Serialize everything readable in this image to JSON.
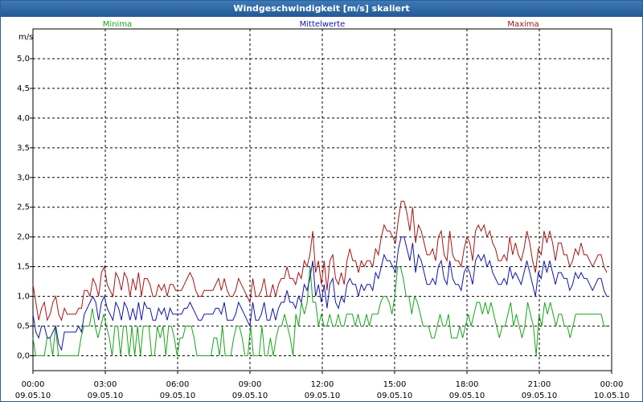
{
  "window": {
    "title": "Windgeschwindigkeit [m/s] skaliert"
  },
  "chart_data": {
    "type": "line",
    "title": "Windgeschwindigkeit [m/s] skaliert",
    "ylabel": "m/s",
    "ylim": [
      -0.25,
      5.5
    ],
    "yticks": [
      "0,0",
      "0,5",
      "1,0",
      "1,5",
      "2,0",
      "2,5",
      "3,0",
      "3,5",
      "4,0",
      "4,5",
      "5,0"
    ],
    "xticks": [
      {
        "time": "00:00",
        "date": "09.05.10"
      },
      {
        "time": "03:00",
        "date": "09.05.10"
      },
      {
        "time": "06:00",
        "date": "09.05.10"
      },
      {
        "time": "09:00",
        "date": "09.05.10"
      },
      {
        "time": "12:00",
        "date": "09.05.10"
      },
      {
        "time": "15:00",
        "date": "09.05.10"
      },
      {
        "time": "18:00",
        "date": "09.05.10"
      },
      {
        "time": "21:00",
        "date": "09.05.10"
      },
      {
        "time": "00:00",
        "date": "10.05.10"
      }
    ],
    "grid": true,
    "legend_placement": "top",
    "series": [
      {
        "name": "Minima",
        "color": "#19a319",
        "values": [
          0.3,
          0.0,
          0.0,
          0.0,
          0.0,
          0.3,
          0.3,
          0.0,
          0.5,
          0.0,
          0.0,
          0.0,
          0.0,
          0.0,
          0.0,
          0.0,
          0.0,
          0.3,
          0.5,
          0.5,
          0.5,
          0.8,
          0.5,
          0.3,
          0.5,
          0.7,
          0.5,
          0.3,
          0.0,
          0.5,
          0.5,
          0.0,
          0.5,
          0.5,
          0.0,
          0.5,
          0.0,
          0.5,
          0.0,
          0.5,
          0.5,
          0.5,
          0.0,
          0.0,
          0.5,
          0.3,
          0.5,
          0.0,
          0.5,
          0.5,
          0.3,
          0.0,
          0.3,
          0.3,
          0.5,
          0.5,
          0.5,
          0.3,
          0.0,
          0.0,
          0.0,
          0.0,
          0.0,
          0.0,
          0.3,
          0.3,
          0.0,
          0.5,
          0.0,
          0.0,
          0.0,
          0.3,
          0.5,
          0.5,
          0.3,
          0.0,
          0.0,
          0.5,
          0.0,
          0.0,
          0.0,
          0.5,
          0.0,
          0.0,
          0.3,
          0.0,
          0.3,
          0.5,
          0.5,
          0.7,
          0.5,
          0.3,
          0.0,
          0.7,
          0.5,
          0.9,
          0.7,
          0.9,
          1.5,
          0.9,
          0.9,
          0.5,
          0.7,
          0.5,
          0.5,
          0.7,
          0.5,
          0.5,
          0.7,
          0.5,
          0.5,
          0.7,
          0.7,
          0.7,
          0.5,
          0.7,
          0.5,
          0.5,
          0.7,
          0.5,
          0.7,
          0.7,
          0.7,
          0.9,
          1.0,
          1.0,
          0.9,
          0.7,
          1.0,
          1.5,
          1.5,
          1.3,
          1.0,
          1.0,
          0.7,
          1.0,
          0.9,
          0.7,
          0.5,
          0.5,
          0.5,
          0.3,
          0.3,
          0.5,
          0.7,
          0.5,
          0.5,
          0.7,
          0.3,
          0.3,
          0.3,
          0.5,
          0.3,
          0.5,
          0.7,
          0.5,
          0.7,
          0.9,
          0.9,
          0.7,
          0.9,
          0.7,
          0.9,
          0.7,
          0.5,
          0.3,
          0.5,
          0.5,
          0.7,
          0.9,
          0.5,
          0.7,
          0.5,
          0.3,
          0.5,
          0.9,
          0.7,
          0.5,
          0.0,
          0.7,
          0.5,
          0.9,
          0.7,
          0.9,
          0.7,
          0.5,
          0.7,
          0.7,
          0.5,
          0.5,
          0.3,
          0.5,
          0.7,
          0.7,
          0.7,
          0.7,
          0.7,
          0.7,
          0.7,
          0.7,
          0.7,
          0.7,
          0.5,
          0.5
        ]
      },
      {
        "name": "Mittelwerte",
        "color": "#1414a8",
        "values": [
          0.7,
          0.4,
          0.3,
          0.5,
          0.5,
          0.3,
          0.3,
          0.4,
          0.5,
          0.2,
          0.1,
          0.4,
          0.4,
          0.4,
          0.4,
          0.4,
          0.5,
          0.4,
          0.7,
          0.8,
          0.9,
          1.0,
          0.9,
          0.6,
          0.9,
          1.0,
          0.8,
          0.7,
          0.6,
          0.9,
          0.8,
          0.6,
          0.9,
          0.8,
          0.6,
          0.8,
          0.6,
          0.9,
          0.6,
          0.9,
          0.8,
          0.8,
          0.6,
          0.6,
          0.8,
          0.7,
          0.8,
          0.6,
          0.8,
          0.7,
          0.7,
          0.7,
          0.7,
          0.8,
          0.8,
          0.9,
          0.8,
          0.7,
          0.6,
          0.6,
          0.7,
          0.7,
          0.7,
          0.7,
          0.8,
          0.8,
          0.7,
          0.9,
          0.6,
          0.6,
          0.6,
          0.7,
          0.9,
          0.8,
          0.7,
          0.6,
          0.5,
          0.9,
          0.6,
          0.6,
          0.7,
          0.9,
          0.6,
          0.6,
          0.8,
          0.6,
          0.8,
          0.9,
          0.9,
          1.1,
          0.9,
          0.9,
          0.8,
          1.0,
          0.9,
          1.2,
          1.1,
          1.3,
          1.6,
          1.0,
          1.2,
          0.9,
          1.2,
          0.8,
          1.2,
          1.3,
          0.9,
          0.8,
          1.0,
          0.9,
          1.2,
          1.3,
          1.2,
          1.2,
          1.0,
          1.2,
          1.1,
          1.2,
          1.2,
          1.1,
          1.4,
          1.3,
          1.5,
          1.7,
          1.6,
          1.6,
          1.5,
          1.4,
          1.8,
          2.0,
          2.0,
          1.8,
          1.6,
          1.9,
          1.4,
          1.7,
          1.6,
          1.4,
          1.2,
          1.2,
          1.3,
          1.2,
          1.5,
          1.6,
          1.3,
          1.2,
          1.6,
          1.3,
          1.2,
          1.2,
          1.1,
          1.4,
          1.5,
          1.4,
          1.2,
          1.6,
          1.7,
          1.6,
          1.7,
          1.5,
          1.6,
          1.4,
          1.3,
          1.2,
          1.2,
          1.3,
          1.2,
          1.5,
          1.3,
          1.4,
          1.3,
          1.2,
          1.4,
          1.6,
          1.4,
          1.2,
          1.0,
          1.4,
          1.3,
          1.6,
          1.4,
          1.6,
          1.4,
          1.2,
          1.4,
          1.4,
          1.3,
          1.3,
          1.1,
          1.2,
          1.4,
          1.3,
          1.4,
          1.3,
          1.3,
          1.2,
          1.1,
          1.2,
          1.3,
          1.3,
          1.1,
          1.0
        ]
      },
      {
        "name": "Maxima",
        "color": "#a31414",
        "values": [
          1.2,
          0.9,
          0.6,
          0.8,
          0.9,
          0.6,
          0.7,
          0.9,
          1.0,
          0.7,
          0.6,
          0.8,
          0.7,
          0.7,
          0.7,
          0.7,
          0.8,
          0.8,
          1.1,
          1.1,
          1.0,
          1.3,
          1.2,
          1.0,
          1.4,
          1.5,
          1.2,
          1.1,
          1.0,
          1.4,
          1.3,
          1.1,
          1.4,
          1.3,
          1.0,
          1.3,
          1.1,
          1.4,
          1.0,
          1.3,
          1.3,
          1.2,
          1.0,
          1.0,
          1.2,
          1.1,
          1.2,
          1.0,
          1.2,
          1.2,
          1.1,
          1.1,
          1.1,
          1.2,
          1.3,
          1.4,
          1.3,
          1.1,
          1.0,
          1.0,
          1.1,
          1.1,
          1.1,
          1.1,
          1.2,
          1.3,
          1.1,
          1.3,
          1.1,
          1.0,
          1.0,
          1.1,
          1.3,
          1.2,
          1.1,
          1.0,
          0.9,
          1.3,
          1.0,
          1.0,
          1.1,
          1.3,
          1.0,
          1.0,
          1.2,
          1.0,
          1.2,
          1.3,
          1.3,
          1.5,
          1.3,
          1.3,
          1.2,
          1.4,
          1.3,
          1.6,
          1.5,
          1.7,
          2.1,
          1.4,
          1.6,
          1.2,
          1.6,
          1.1,
          1.6,
          1.7,
          1.3,
          1.2,
          1.4,
          1.2,
          1.6,
          1.8,
          1.6,
          1.6,
          1.4,
          1.6,
          1.5,
          1.6,
          1.6,
          1.5,
          1.8,
          1.7,
          2.0,
          2.2,
          2.1,
          2.1,
          2.0,
          1.9,
          2.3,
          2.6,
          2.6,
          2.4,
          2.1,
          2.5,
          1.9,
          2.2,
          2.1,
          1.9,
          1.7,
          1.7,
          1.8,
          1.6,
          2.0,
          2.1,
          1.7,
          1.6,
          2.1,
          1.7,
          1.6,
          1.6,
          1.5,
          1.8,
          2.0,
          1.9,
          1.6,
          2.1,
          2.2,
          2.1,
          2.2,
          2.0,
          2.1,
          1.9,
          1.8,
          1.6,
          1.6,
          1.7,
          1.6,
          2.0,
          1.7,
          1.9,
          1.7,
          1.6,
          1.8,
          2.1,
          1.9,
          1.6,
          1.4,
          1.8,
          1.7,
          2.1,
          1.9,
          2.1,
          1.9,
          1.6,
          1.9,
          1.9,
          1.7,
          1.7,
          1.5,
          1.6,
          1.8,
          1.7,
          1.9,
          1.7,
          1.7,
          1.6,
          1.5,
          1.6,
          1.7,
          1.7,
          1.5,
          1.4
        ]
      }
    ]
  }
}
